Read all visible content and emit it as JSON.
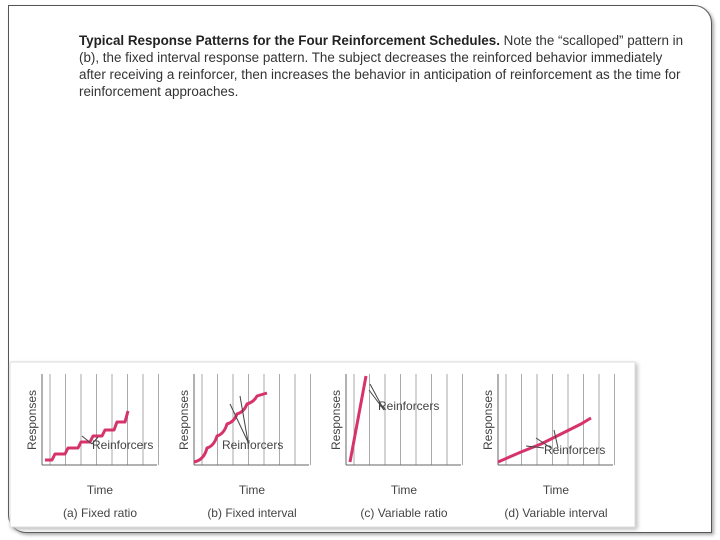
{
  "caption": {
    "lead": "Typical   Response Patterns for the Four Reinforcement Schedules.",
    "text": " Note the “scalloped” pattern in (b), the fixed interval response pattern. The subject decreases the reinforced behavior immediately after receiving a reinforcer, then increases the behavior in anticipation of reinforcement as the time for reinforcement approaches."
  },
  "figure": {
    "panels": [
      {
        "y_label": "Responses",
        "x_label": "Time",
        "annotation": "Reinforcers",
        "caption": "(a) Fixed ratio"
      },
      {
        "y_label": "Responses",
        "x_label": "Time",
        "annotation": "Reinforcers",
        "caption": "(b) Fixed interval"
      },
      {
        "y_label": "Responses",
        "x_label": "Time",
        "annotation": "Reinforcers",
        "caption": "(c) Variable ratio"
      },
      {
        "y_label": "Responses",
        "x_label": "Time",
        "annotation": "Reinforcers",
        "caption": "(d) Variable interval"
      }
    ]
  }
}
